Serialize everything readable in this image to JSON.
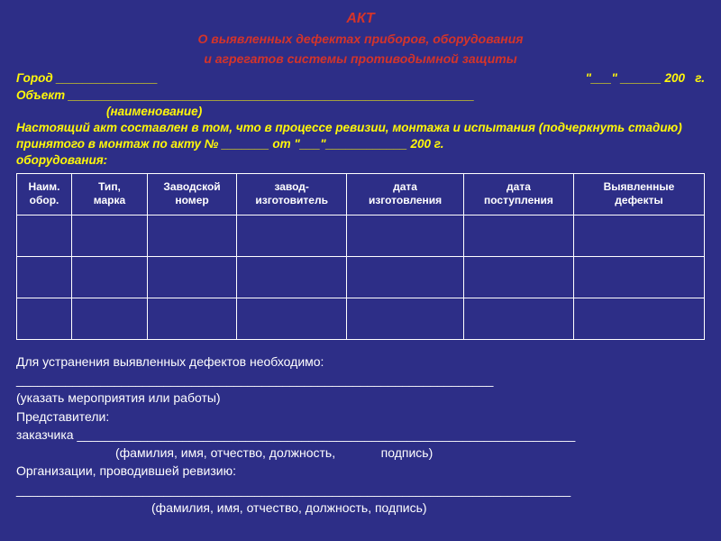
{
  "colors": {
    "background": "#2d2e87",
    "title": "#d4342a",
    "header_text": "#fff70a",
    "table_text": "#ffffff",
    "border": "#ffffff"
  },
  "title": {
    "main": "АКТ",
    "sub1": "О выявленных дефектах приборов, оборудования",
    "sub2": "и агрегатов системы противодымной защиты"
  },
  "header": {
    "city_line_left": "Город _______________",
    "city_line_right": "\"___\" ______ 200   г.",
    "object_line": "Объект ____________________________________________________________",
    "object_note": "(наименование)",
    "body_line1": "Настоящий акт составлен в том, что в процессе ревизии, монтажа и испытания (подчеркнуть стадию)",
    "body_line2": "принятого в монтаж по акту № _______ от \"___\"____________ 200 г.",
    "body_line3": "оборудования:"
  },
  "table": {
    "type": "table",
    "columns": [
      {
        "label_l1": "Наим.",
        "label_l2": "обор.",
        "width": "8%"
      },
      {
        "label_l1": "Тип,",
        "label_l2": "марка",
        "width": "11%"
      },
      {
        "label_l1": "Заводской",
        "label_l2": "номер",
        "width": "13%"
      },
      {
        "label_l1": "завод-",
        "label_l2": "изготовитель",
        "width": "16%"
      },
      {
        "label_l1": "дата",
        "label_l2": "изготовления",
        "width": "17%"
      },
      {
        "label_l1": "дата",
        "label_l2": "поступления",
        "width": "16%"
      },
      {
        "label_l1": "Выявленные",
        "label_l2": "дефекты",
        "width": "19%"
      }
    ],
    "rows": [
      [
        "",
        "",
        "",
        "",
        "",
        "",
        ""
      ],
      [
        "",
        "",
        "",
        "",
        "",
        "",
        ""
      ],
      [
        "",
        "",
        "",
        "",
        "",
        "",
        ""
      ]
    ]
  },
  "footer": {
    "line1": "Для устранения выявленных дефектов необходимо:",
    "line2": "____________________________________________________________________",
    "line3": "(указать мероприятия или работы)",
    "line4": "Представители:",
    "line5": "заказчика _______________________________________________________________________",
    "line6a": "(фамилия, имя, отчество, должность,",
    "line6b": "подпись)",
    "line7": "Организации,  проводившей ревизию:",
    "line8": "_______________________________________________________________________________",
    "line9": "(фамилия, имя, отчество, должность,  подпись)"
  }
}
